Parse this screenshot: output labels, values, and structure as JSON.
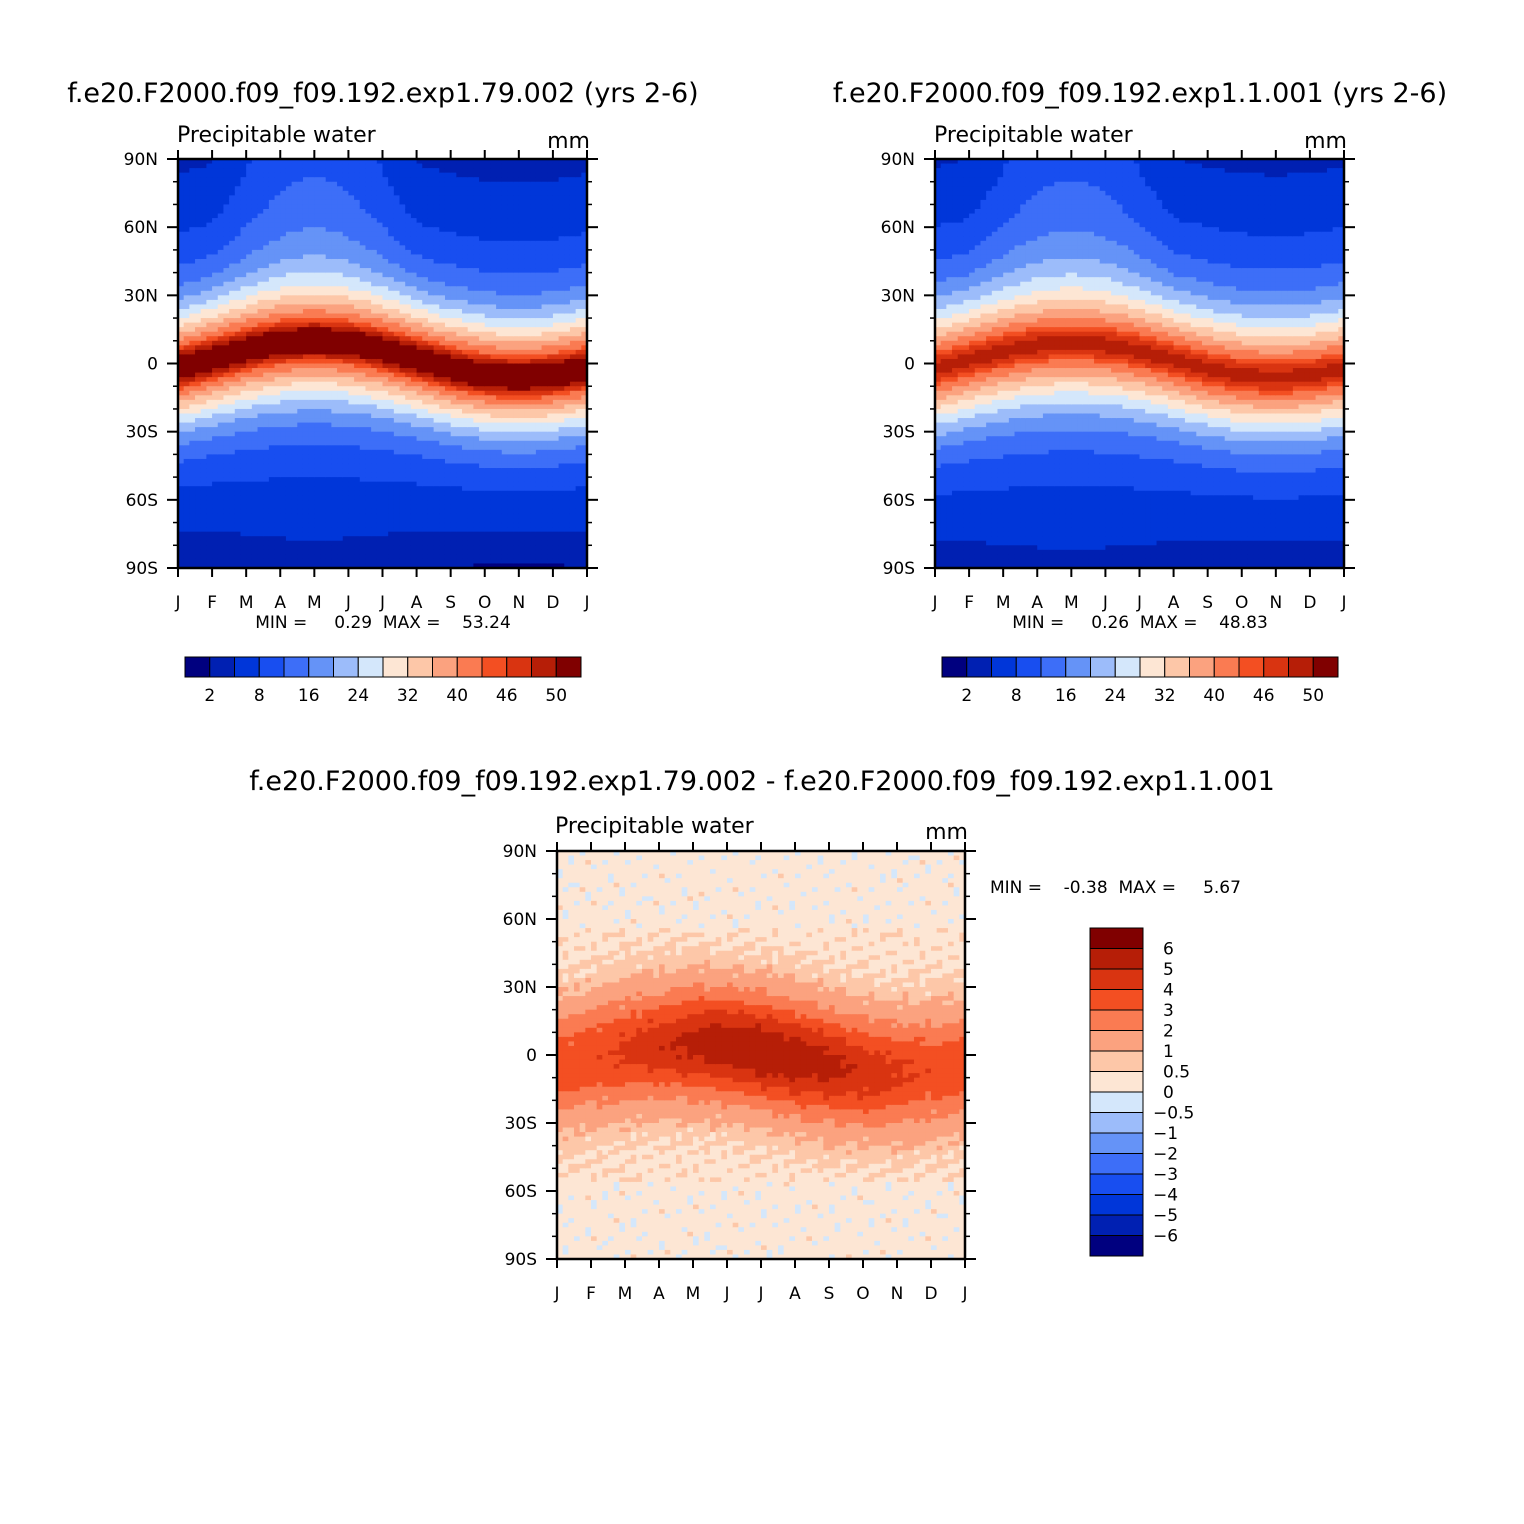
{
  "chart_data": [
    {
      "type": "heatmap",
      "title": "f.e20.F2000.f09_f09.192.exp1.79.002 (yrs 2-6)",
      "subtitle": "Precipitable water",
      "units": "mm",
      "x_categories": [
        "J",
        "F",
        "M",
        "A",
        "M",
        "J",
        "J",
        "A",
        "S",
        "O",
        "N",
        "D",
        "J"
      ],
      "y_ticks": [
        "90N",
        "60N",
        "30N",
        "0",
        "30S",
        "60S",
        "90S"
      ],
      "y_values": [
        90,
        60,
        30,
        0,
        -30,
        -60,
        -90
      ],
      "stats_text": "MIN =     0.29  MAX =    53.24",
      "min": 0.29,
      "max": 53.24,
      "levels": [
        2,
        4,
        8,
        12,
        16,
        20,
        24,
        28,
        32,
        36,
        40,
        44,
        46,
        48,
        50
      ],
      "colorbar_labels": [
        "2",
        "8",
        "16",
        "24",
        "32",
        "40",
        "46",
        "50"
      ],
      "field": {
        "kind": "climatology",
        "pole_s": 1.2,
        "pole_n": 2.5,
        "peak": 53.2,
        "peak_lat_winter": -6,
        "peak_lat_summer": 10,
        "width": 17,
        "arctic_summer": 13,
        "antarctic_range": 1.5
      }
    },
    {
      "type": "heatmap",
      "title": "f.e20.F2000.f09_f09.192.exp1.1.001 (yrs 2-6)",
      "subtitle": "Precipitable water",
      "units": "mm",
      "x_categories": [
        "J",
        "F",
        "M",
        "A",
        "M",
        "J",
        "J",
        "A",
        "S",
        "O",
        "N",
        "D",
        "J"
      ],
      "y_ticks": [
        "90N",
        "60N",
        "30N",
        "0",
        "30S",
        "60S",
        "90S"
      ],
      "y_values": [
        90,
        60,
        30,
        0,
        -30,
        -60,
        -90
      ],
      "stats_text": "MIN =     0.26  MAX =    48.83",
      "min": 0.26,
      "max": 48.83,
      "levels": [
        2,
        4,
        8,
        12,
        16,
        20,
        24,
        28,
        32,
        36,
        40,
        44,
        46,
        48,
        50
      ],
      "colorbar_labels": [
        "2",
        "8",
        "16",
        "24",
        "32",
        "40",
        "46",
        "50"
      ],
      "field": {
        "kind": "climatology",
        "pole_s": 1.1,
        "pole_n": 2.3,
        "peak": 48.8,
        "peak_lat_winter": -6,
        "peak_lat_summer": 9,
        "width": 18,
        "arctic_summer": 12,
        "antarctic_range": 1.4
      }
    },
    {
      "type": "heatmap",
      "title": "f.e20.F2000.f09_f09.192.exp1.79.002 - f.e20.F2000.f09_f09.192.exp1.1.001",
      "subtitle": "Precipitable water",
      "units": "mm",
      "x_categories": [
        "J",
        "F",
        "M",
        "A",
        "M",
        "J",
        "J",
        "A",
        "S",
        "O",
        "N",
        "D",
        "J"
      ],
      "y_ticks": [
        "90N",
        "60N",
        "30N",
        "0",
        "30S",
        "60S",
        "90S"
      ],
      "y_values": [
        90,
        60,
        30,
        0,
        -30,
        -60,
        -90
      ],
      "stats_text": "MIN =    -0.38  MAX =     5.67",
      "min": -0.38,
      "max": 5.67,
      "levels": [
        -6,
        -5,
        -4,
        -3,
        -2,
        -1,
        -0.5,
        0,
        0.5,
        1,
        2,
        3,
        4,
        5,
        6
      ],
      "colorbar_labels": [
        "6",
        "5",
        "4",
        "3",
        "2",
        "1",
        "0.5",
        "0",
        "-0.5",
        "-1",
        "-2",
        "-3",
        "-4",
        "-5",
        "-6"
      ],
      "field": {
        "kind": "difference",
        "peak": 5.6,
        "peak_lat_winter": -8,
        "peak_lat_summer": 5,
        "width": 17,
        "noise": 0.35
      }
    }
  ],
  "colormap": [
    "#00007f",
    "#0020b2",
    "#0036d9",
    "#184ef0",
    "#3d6ef8",
    "#6593f7",
    "#9cbcfa",
    "#d4e7fb",
    "#fde6d4",
    "#fdc7a8",
    "#fba27f",
    "#fa7b52",
    "#f34f22",
    "#d93411",
    "#b61e07",
    "#800000"
  ]
}
